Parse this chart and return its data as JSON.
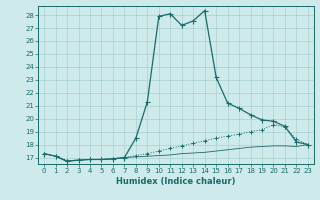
{
  "xlabel": "Humidex (Indice chaleur)",
  "background_color": "#ceeaea",
  "grid_color": "#aacfcf",
  "line_color": "#1a6b6b",
  "xlim": [
    -0.5,
    23.5
  ],
  "ylim": [
    16.5,
    28.7
  ],
  "yticks": [
    17,
    18,
    19,
    20,
    21,
    22,
    23,
    24,
    25,
    26,
    27,
    28
  ],
  "xticks": [
    0,
    1,
    2,
    3,
    4,
    5,
    6,
    7,
    8,
    9,
    10,
    11,
    12,
    13,
    14,
    15,
    16,
    17,
    18,
    19,
    20,
    21,
    22,
    23
  ],
  "line1_x": [
    0,
    1,
    2,
    3,
    4,
    5,
    6,
    7,
    8,
    9,
    10,
    11,
    12,
    13,
    14,
    15,
    16,
    17,
    18,
    19,
    20,
    21,
    22,
    23
  ],
  "line1_y": [
    17.3,
    17.1,
    16.7,
    16.8,
    16.85,
    16.85,
    16.9,
    17.0,
    18.5,
    21.3,
    27.9,
    28.1,
    27.2,
    27.55,
    28.35,
    23.2,
    21.2,
    20.8,
    20.3,
    19.9,
    19.8,
    19.4,
    18.2,
    18.0
  ],
  "line2_x": [
    0,
    1,
    2,
    3,
    4,
    5,
    6,
    7,
    8,
    9,
    10,
    11,
    12,
    13,
    14,
    15,
    16,
    17,
    18,
    19,
    20,
    21,
    22,
    23
  ],
  "line2_y": [
    17.3,
    17.1,
    16.75,
    16.8,
    16.85,
    16.85,
    16.9,
    17.0,
    17.15,
    17.3,
    17.5,
    17.7,
    17.9,
    18.1,
    18.3,
    18.5,
    18.65,
    18.8,
    19.0,
    19.15,
    19.55,
    19.35,
    18.4,
    18.0
  ],
  "line3_x": [
    0,
    1,
    2,
    3,
    4,
    5,
    6,
    7,
    8,
    9,
    10,
    11,
    12,
    13,
    14,
    15,
    16,
    17,
    18,
    19,
    20,
    21,
    22,
    23
  ],
  "line3_y": [
    17.3,
    17.1,
    16.75,
    16.8,
    16.85,
    16.85,
    16.9,
    17.0,
    17.05,
    17.1,
    17.15,
    17.2,
    17.3,
    17.35,
    17.4,
    17.5,
    17.6,
    17.7,
    17.8,
    17.85,
    17.9,
    17.9,
    17.85,
    18.0
  ]
}
